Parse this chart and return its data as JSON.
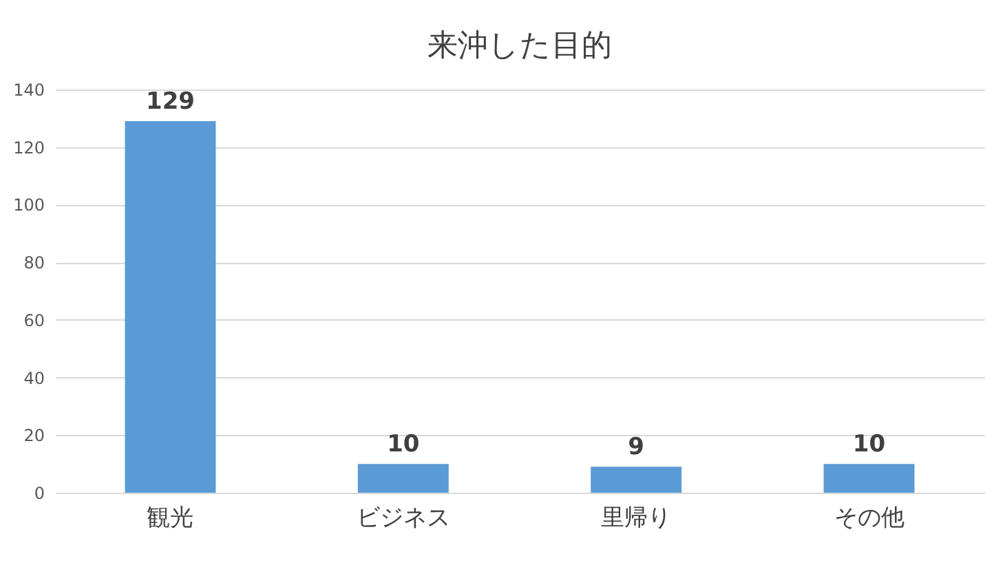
{
  "chart_data": {
    "type": "bar",
    "title": "来沖した目的",
    "categories": [
      "観光",
      "ビジネス",
      "里帰り",
      "その他"
    ],
    "values": [
      129,
      10,
      9,
      10
    ],
    "color": "#5b9bd5",
    "ylim": [
      0,
      140
    ],
    "yticks": [
      0,
      20,
      40,
      60,
      80,
      100,
      120,
      140
    ],
    "grid": "y",
    "data_labels": true
  }
}
